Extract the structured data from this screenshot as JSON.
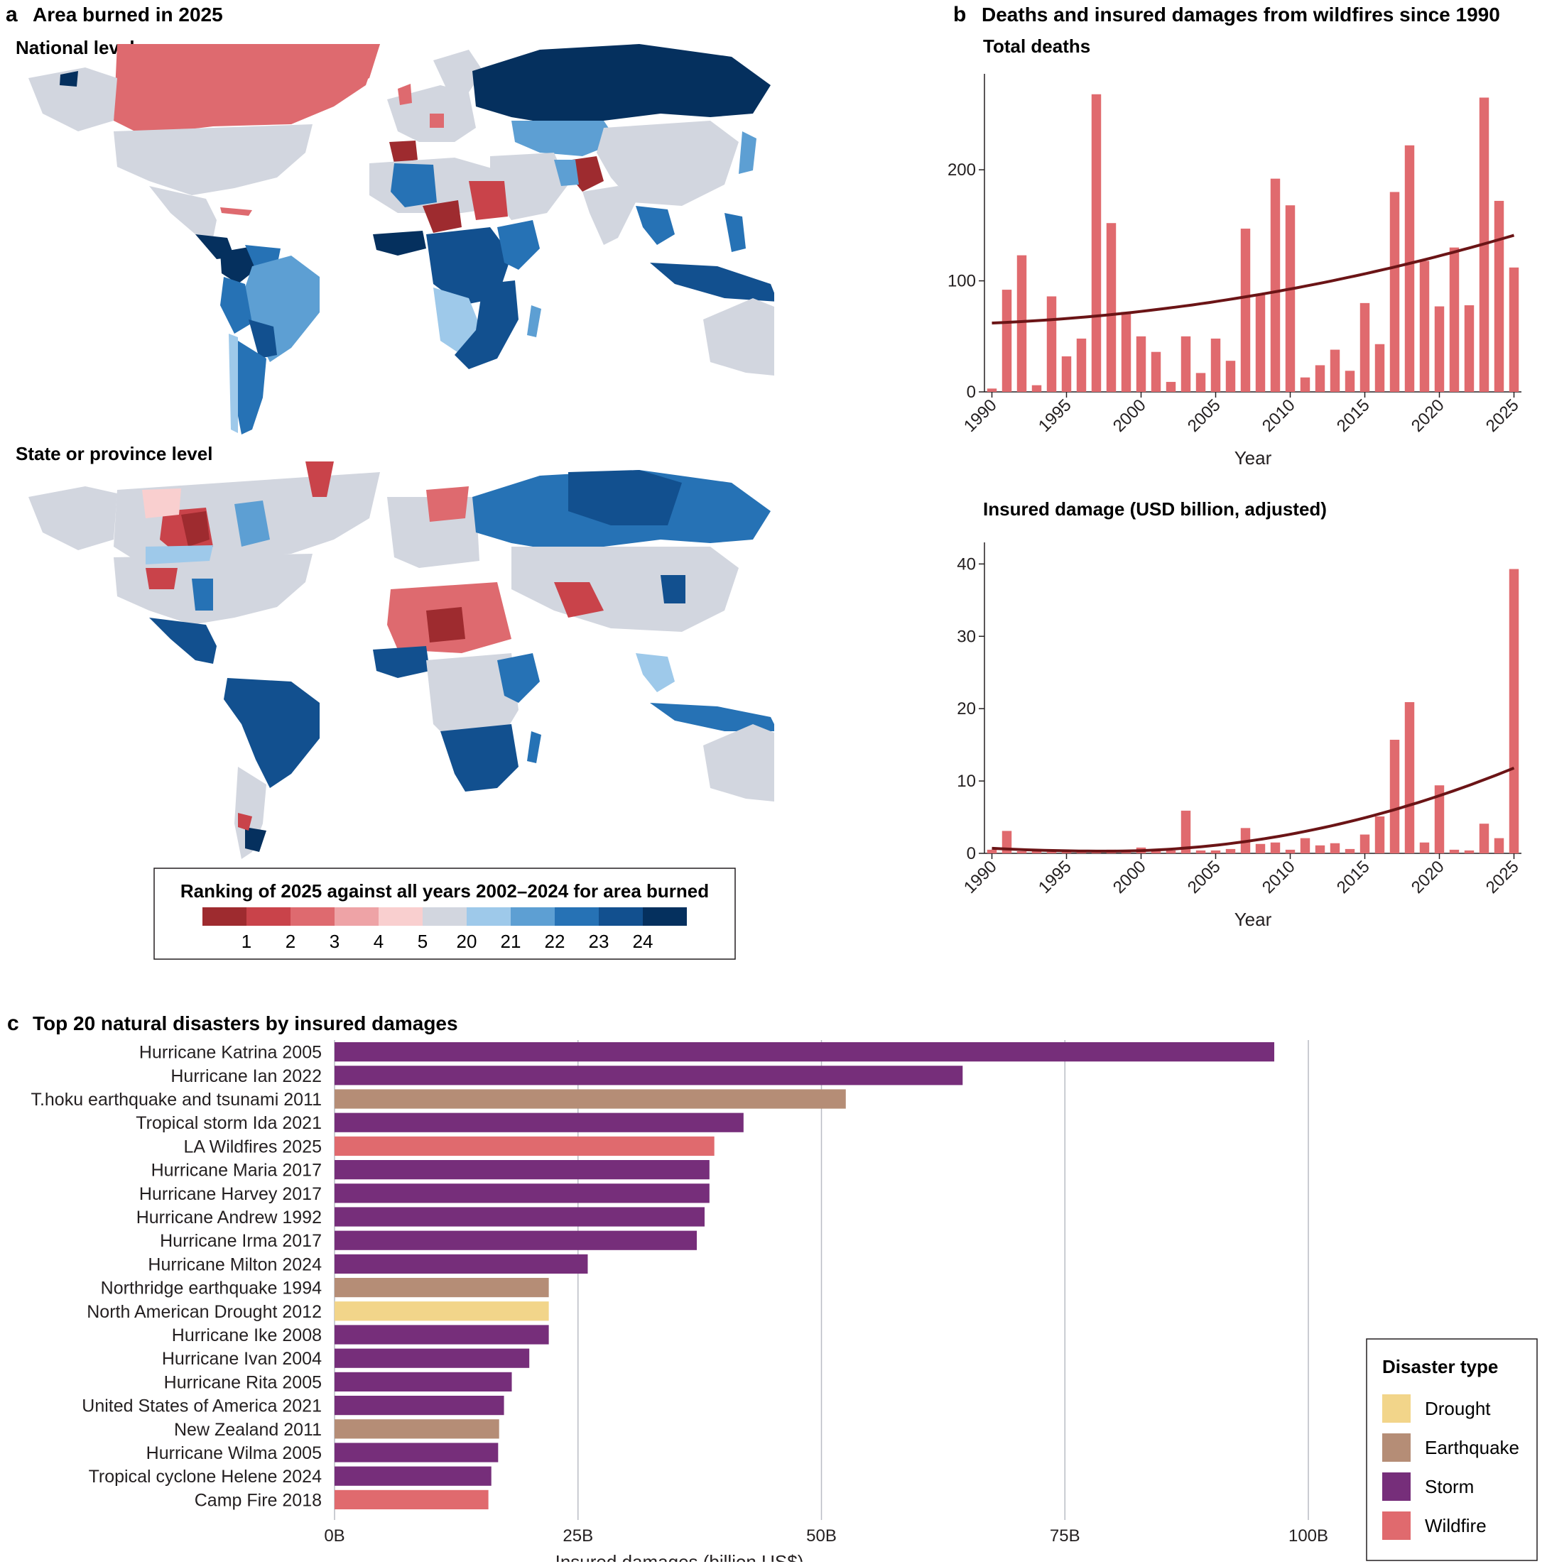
{
  "panel_a": {
    "letter": "a",
    "title": "Area burned in 2025",
    "national_label": "National level",
    "state_label": "State or province level",
    "legend": {
      "title": "Ranking of 2025 against all years 2002–2024 for area burned",
      "colors": [
        "#9e2b2f",
        "#c9434a",
        "#de6a6f",
        "#eea3a6",
        "#f9cfcf",
        "#d2d6df",
        "#9ec9ea",
        "#5d9fd3",
        "#2672b5",
        "#12508f",
        "#05305e"
      ],
      "labels": [
        "1",
        "2",
        "3",
        "4",
        "5",
        "20",
        "21",
        "22",
        "23",
        "24"
      ]
    }
  },
  "panel_b": {
    "letter": "b",
    "title": "Deaths and insured damages from wildfires since 1990"
  },
  "panel_c": {
    "letter": "c",
    "title": "Top 20 natural disasters by insured damages"
  },
  "chart_data": [
    {
      "id": "deaths",
      "type": "bar",
      "title": "Total deaths",
      "xlabel": "Year",
      "ylabel": "",
      "ylim": [
        0,
        280
      ],
      "yticks": [
        0,
        100,
        200
      ],
      "xtick_years": [
        1990,
        1995,
        2000,
        2005,
        2010,
        2015,
        2020,
        2025
      ],
      "x": [
        1990,
        1991,
        1992,
        1993,
        1994,
        1995,
        1996,
        1997,
        1998,
        1999,
        2000,
        2001,
        2002,
        2003,
        2004,
        2005,
        2006,
        2007,
        2008,
        2009,
        2010,
        2011,
        2012,
        2013,
        2014,
        2015,
        2016,
        2017,
        2018,
        2019,
        2020,
        2021,
        2022,
        2023,
        2024,
        2025
      ],
      "values": [
        3,
        92,
        123,
        6,
        86,
        32,
        48,
        268,
        152,
        72,
        50,
        36,
        9,
        50,
        17,
        48,
        28,
        147,
        88,
        192,
        168,
        13,
        24,
        38,
        19,
        80,
        43,
        180,
        222,
        118,
        77,
        130,
        78,
        265,
        172,
        112
      ],
      "trend_start": 62,
      "trend_end": 141,
      "bar_color": "#e06a6e",
      "trend_color": "#6b1416"
    },
    {
      "id": "damage",
      "type": "bar",
      "title": "Insured damage (USD billion, adjusted)",
      "xlabel": "Year",
      "ylabel": "",
      "ylim": [
        0,
        42
      ],
      "yticks": [
        0,
        10,
        20,
        30,
        40
      ],
      "xtick_years": [
        1990,
        1995,
        2000,
        2005,
        2010,
        2015,
        2020,
        2025
      ],
      "x": [
        1990,
        1991,
        1992,
        1993,
        1994,
        1995,
        1996,
        1997,
        1998,
        1999,
        2000,
        2001,
        2002,
        2003,
        2004,
        2005,
        2006,
        2007,
        2008,
        2009,
        2010,
        2011,
        2012,
        2013,
        2014,
        2015,
        2016,
        2017,
        2018,
        2019,
        2020,
        2021,
        2022,
        2023,
        2024,
        2025
      ],
      "values": [
        0.5,
        3.1,
        0.3,
        0.3,
        0.2,
        0.3,
        0.2,
        0.3,
        0.5,
        0.3,
        0.8,
        0.3,
        0.4,
        5.9,
        0.4,
        0.4,
        0.6,
        3.5,
        1.3,
        1.5,
        0.5,
        2.1,
        1.1,
        1.4,
        0.6,
        2.6,
        5.1,
        15.7,
        20.9,
        1.5,
        9.4,
        0.5,
        0.4,
        4.1,
        2.1,
        39.3
      ],
      "trend_start": 0.7,
      "trend_min": 0.3,
      "trend_end": 11.8,
      "bar_color": "#e06a6e",
      "trend_color": "#6b1416"
    },
    {
      "id": "disasters",
      "type": "bar",
      "orientation": "horizontal",
      "title": "Top 20 natural disasters by insured damages",
      "xlabel": "Insured damages (billion US$)",
      "xlim": [
        0,
        100
      ],
      "xticks": [
        0,
        25,
        50,
        75,
        100
      ],
      "xtick_labels": [
        "0B",
        "25B",
        "50B",
        "75B",
        "100B"
      ],
      "categories": [
        "Hurricane Katrina 2005",
        "Hurricane Ian 2022",
        "T.hoku earthquake and tsunami 2011",
        "Tropical storm Ida 2021",
        "LA Wildfires 2025",
        "Hurricane Maria 2017",
        "Hurricane Harvey 2017",
        "Hurricane Andrew 1992",
        "Hurricane Irma 2017",
        "Hurricane Milton 2024",
        "Northridge earthquake 1994",
        "North American Drought 2012",
        "Hurricane Ike 2008",
        "Hurricane Ivan 2004",
        "Hurricane Rita 2005",
        "United States of America 2021",
        "New Zealand 2011",
        "Hurricane Wilma 2005",
        "Tropical cyclone Helene 2024",
        "Camp Fire 2018"
      ],
      "values": [
        96.5,
        64.5,
        52.5,
        42,
        39,
        38.5,
        38.5,
        38,
        37.2,
        26,
        22,
        22,
        22,
        20,
        18.2,
        17.4,
        16.9,
        16.8,
        16.1,
        15.8
      ],
      "types": [
        "Storm",
        "Storm",
        "Earthquake",
        "Storm",
        "Wildfire",
        "Storm",
        "Storm",
        "Storm",
        "Storm",
        "Storm",
        "Earthquake",
        "Drought",
        "Storm",
        "Storm",
        "Storm",
        "Storm",
        "Earthquake",
        "Storm",
        "Storm",
        "Wildfire"
      ],
      "legend": {
        "title": "Disaster type",
        "entries": [
          {
            "name": "Drought",
            "color": "#f2d58a"
          },
          {
            "name": "Earthquake",
            "color": "#b58d76"
          },
          {
            "name": "Storm",
            "color": "#762e7a"
          },
          {
            "name": "Wildfire",
            "color": "#e06a6e"
          }
        ]
      }
    }
  ]
}
